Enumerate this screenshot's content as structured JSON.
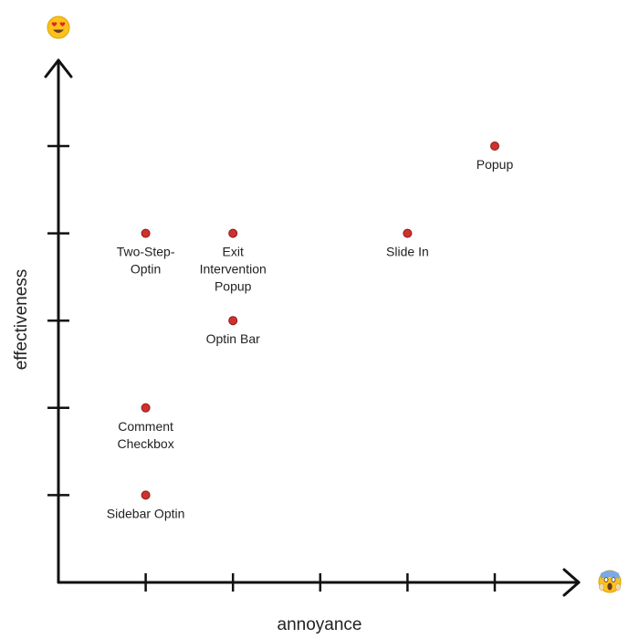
{
  "chart_data": {
    "type": "scatter",
    "xlabel": "annoyance",
    "ylabel": "effectiveness",
    "xlim": [
      0,
      6
    ],
    "ylim": [
      0,
      6
    ],
    "grid": false,
    "x_ticks": [
      1,
      2,
      3,
      4,
      5
    ],
    "y_ticks": [
      1,
      2,
      3,
      4,
      5
    ],
    "x_axis_end_icon": "screaming-face-icon",
    "y_axis_end_icon": "heart-eyes-face-icon",
    "point_color": "#d0312d",
    "points": [
      {
        "x": 1,
        "y": 1,
        "label": [
          "Sidebar Optin"
        ]
      },
      {
        "x": 1,
        "y": 2,
        "label": [
          "Comment",
          "Checkbox"
        ]
      },
      {
        "x": 1,
        "y": 4,
        "label": [
          "Two-Step-",
          "Optin"
        ]
      },
      {
        "x": 2,
        "y": 4,
        "label": [
          "Exit",
          "Intervention",
          "Popup"
        ]
      },
      {
        "x": 2,
        "y": 3,
        "label": [
          "Optin Bar"
        ]
      },
      {
        "x": 4,
        "y": 4,
        "label": [
          "Slide In"
        ]
      },
      {
        "x": 5,
        "y": 5,
        "label": [
          "Popup"
        ]
      }
    ]
  }
}
